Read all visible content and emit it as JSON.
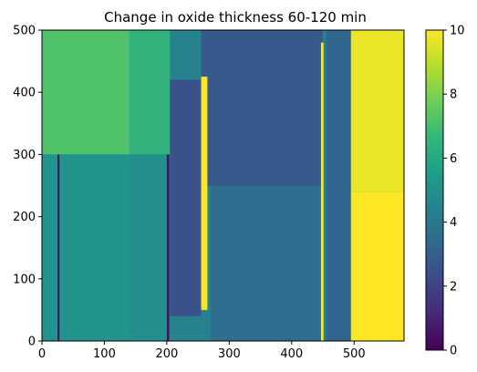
{
  "chart_data": {
    "type": "heatmap",
    "title": "Change in oxide thickness 60-120 min",
    "xlabel": "",
    "ylabel": "",
    "xlim": [
      0,
      580
    ],
    "ylim": [
      0,
      500
    ],
    "x_ticks": [
      0,
      100,
      200,
      300,
      400,
      500
    ],
    "y_ticks": [
      0,
      100,
      200,
      300,
      400,
      500
    ],
    "colorbar": {
      "colormap": "viridis",
      "range": [
        0,
        10
      ],
      "ticks": [
        0,
        2,
        4,
        6,
        8,
        10
      ]
    },
    "colormap_stops": [
      "#440154",
      "#482878",
      "#3e4989",
      "#31688e",
      "#26828e",
      "#1f9e89",
      "#35b779",
      "#6ece58",
      "#b5de2b",
      "#fde725"
    ],
    "regions": [
      {
        "name": "left-upper",
        "x": [
          0,
          140
        ],
        "y": [
          300,
          500
        ],
        "value": 7.2
      },
      {
        "name": "left-lower",
        "x": [
          0,
          140
        ],
        "y": [
          0,
          300
        ],
        "value": 5.2
      },
      {
        "name": "middle-upper",
        "x": [
          140,
          205
        ],
        "y": [
          300,
          500
        ],
        "value": 6.5
      },
      {
        "name": "middle-lower",
        "x": [
          140,
          205
        ],
        "y": [
          0,
          300
        ],
        "value": 5.0
      },
      {
        "name": "dark-band",
        "x": [
          205,
          255
        ],
        "y": [
          40,
          420
        ],
        "value": 2.5
      },
      {
        "name": "upper-right-block",
        "x": [
          255,
          450
        ],
        "y": [
          250,
          500
        ],
        "value": 2.8
      },
      {
        "name": "lower-right-block",
        "x": [
          270,
          450
        ],
        "y": [
          0,
          250
        ],
        "value": 3.6
      },
      {
        "name": "right-panel",
        "x": [
          455,
          495
        ],
        "y": [
          0,
          500
        ],
        "value": 3.3
      },
      {
        "name": "far-right-lower",
        "x": [
          495,
          580
        ],
        "y": [
          0,
          240
        ],
        "value": 10
      },
      {
        "name": "far-right-upper",
        "x": [
          495,
          580
        ],
        "y": [
          240,
          500
        ],
        "value": 9.7
      }
    ],
    "bands": [
      {
        "name": "yellow-stripe-1",
        "x": [
          255,
          265
        ],
        "y": [
          50,
          425
        ],
        "value": 10
      },
      {
        "name": "yellow-stripe-2",
        "x": [
          447,
          451
        ],
        "y": [
          0,
          480
        ],
        "value": 10
      },
      {
        "name": "dark-line-1",
        "x": [
          200,
          204
        ],
        "y": [
          0,
          300
        ],
        "value": 0.5
      },
      {
        "name": "dark-line-2",
        "x": [
          25,
          28
        ],
        "y": [
          0,
          300
        ],
        "value": 0.5
      }
    ]
  }
}
